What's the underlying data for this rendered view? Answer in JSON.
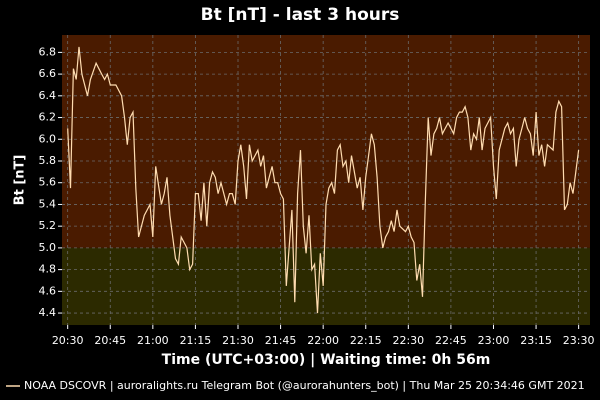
{
  "chart_data": {
    "type": "line",
    "title": "Bt [nT] - last 3 hours",
    "ylabel": "Bt [nT]",
    "xlabel": "Time (UTC+03:00) | Waiting time: 0h 56m",
    "footer": "| auroralights.ru Telegram Bot (@aurorahunters_bot) | Thu Mar 25 20:34:46 GMT 2021",
    "threshold": 5,
    "band_colors": {
      "below": "#2c2a00",
      "above": "#4a1b00"
    },
    "grid": true,
    "xlim": [
      "20:28",
      "23:34"
    ],
    "xticks": [
      "20:30",
      "20:45",
      "21:00",
      "21:15",
      "21:30",
      "21:45",
      "22:00",
      "22:15",
      "22:30",
      "22:45",
      "23:00",
      "23:15",
      "23:30"
    ],
    "ylim": [
      4.29,
      6.96
    ],
    "yticks": [
      4.4,
      4.6,
      4.8,
      {
        "value": 5,
        "label": "5.0"
      },
      5.2,
      5.4,
      5.6,
      5.8,
      {
        "value": 6,
        "label": "6.0"
      },
      6.2,
      6.4,
      6.6,
      6.8
    ],
    "x": [
      "20:30",
      "20:31",
      "20:32",
      "20:33",
      "20:34",
      "20:35",
      "20:36",
      "20:37",
      "20:38",
      "20:40",
      "20:41",
      "20:42",
      "20:43",
      "20:44",
      "20:45",
      "20:47",
      "20:49",
      "20:50",
      "20:51",
      "20:52",
      "20:53",
      "20:54",
      "20:55",
      "20:57",
      "20:58",
      "20:59",
      "21:00",
      "21:01",
      "21:03",
      "21:04",
      "21:05",
      "21:06",
      "21:08",
      "21:09",
      "21:10",
      "21:12",
      "21:13",
      "21:14",
      "21:15",
      "21:16",
      "21:17",
      "21:18",
      "21:19",
      "21:20",
      "21:21",
      "21:22",
      "21:23",
      "21:24",
      "21:26",
      "21:27",
      "21:28",
      "21:29",
      "21:30",
      "21:31",
      "21:32",
      "21:33",
      "21:34",
      "21:35",
      "21:37",
      "21:38",
      "21:39",
      "21:40",
      "21:41",
      "21:42",
      "21:43",
      "21:44",
      "21:45",
      "21:46",
      "21:47",
      "21:49",
      "21:50",
      "21:51",
      "21:52",
      "21:53",
      "21:54",
      "21:55",
      "21:56",
      "21:57",
      "21:58",
      "21:59",
      "22:00",
      "22:01",
      "22:02",
      "22:03",
      "22:04",
      "22:05",
      "22:06",
      "22:07",
      "22:08",
      "22:09",
      "22:10",
      "22:12",
      "22:13",
      "22:14",
      "22:15",
      "22:16",
      "22:17",
      "22:18",
      "22:19",
      "22:20",
      "22:21",
      "22:22",
      "22:23",
      "22:24",
      "22:25",
      "22:26",
      "22:27",
      "22:29",
      "22:30",
      "22:31",
      "22:32",
      "22:33",
      "22:34",
      "22:35",
      "22:36",
      "22:37",
      "22:38",
      "22:39",
      "22:40",
      "22:41",
      "22:42",
      "22:43",
      "22:44",
      "22:46",
      "22:47",
      "22:48",
      "22:49",
      "22:50",
      "22:51",
      "22:52",
      "22:53",
      "22:54",
      "22:55",
      "22:56",
      "22:57",
      "22:58",
      "22:59",
      "23:00",
      "23:01",
      "23:02",
      "23:04",
      "23:05",
      "23:06",
      "23:07",
      "23:08",
      "23:09",
      "23:10",
      "23:11",
      "23:12",
      "23:13",
      "23:14",
      "23:15",
      "23:16",
      "23:17",
      "23:18",
      "23:19",
      "23:21",
      "23:22",
      "23:23",
      "23:24",
      "23:25",
      "23:26",
      "23:27",
      "23:28",
      "23:29",
      "23:30"
    ],
    "series": [
      {
        "name": "NOAA DSCOVR",
        "color": "#ffdcb0",
        "values": [
          6.1,
          5.55,
          6.65,
          6.55,
          6.85,
          6.6,
          6.5,
          6.4,
          6.55,
          6.7,
          6.65,
          6.6,
          6.55,
          6.6,
          6.5,
          6.5,
          6.4,
          6.2,
          5.95,
          6.2,
          6.25,
          5.55,
          5.1,
          5.3,
          5.35,
          5.4,
          5.1,
          5.75,
          5.4,
          5.5,
          5.65,
          5.3,
          4.9,
          4.85,
          5.1,
          5.0,
          4.8,
          4.85,
          5.5,
          5.5,
          5.25,
          5.6,
          5.2,
          5.6,
          5.7,
          5.65,
          5.5,
          5.6,
          5.4,
          5.5,
          5.5,
          5.4,
          5.8,
          5.95,
          5.75,
          5.45,
          5.95,
          5.8,
          5.9,
          5.75,
          5.85,
          5.55,
          5.65,
          5.75,
          5.6,
          5.6,
          5.5,
          5.45,
          4.65,
          5.35,
          4.5,
          5.5,
          5.9,
          5.2,
          4.95,
          5.3,
          4.8,
          4.85,
          4.4,
          4.95,
          4.65,
          5.4,
          5.55,
          5.6,
          5.5,
          5.9,
          5.95,
          5.75,
          5.8,
          5.6,
          5.85,
          5.55,
          5.65,
          5.35,
          5.65,
          5.85,
          6.05,
          5.95,
          5.65,
          5.2,
          5.0,
          5.1,
          5.15,
          5.25,
          5.15,
          5.35,
          5.2,
          5.15,
          5.2,
          5.1,
          5.05,
          4.7,
          4.85,
          4.55,
          5.45,
          6.2,
          5.85,
          6.05,
          6.1,
          6.2,
          6.05,
          6.1,
          6.15,
          6.05,
          6.2,
          6.25,
          6.25,
          6.3,
          6.2,
          5.9,
          6.05,
          6.0,
          6.2,
          5.9,
          6.1,
          6.15,
          6.2,
          5.75,
          5.45,
          5.9,
          6.1,
          6.15,
          6.05,
          6.1,
          5.75,
          6.0,
          6.1,
          6.2,
          6.1,
          6.05,
          5.85,
          6.25,
          5.85,
          5.95,
          5.75,
          5.95,
          5.9,
          6.25,
          6.35,
          6.3,
          5.35,
          5.4,
          5.6,
          5.5,
          5.7,
          5.9
        ]
      }
    ]
  }
}
